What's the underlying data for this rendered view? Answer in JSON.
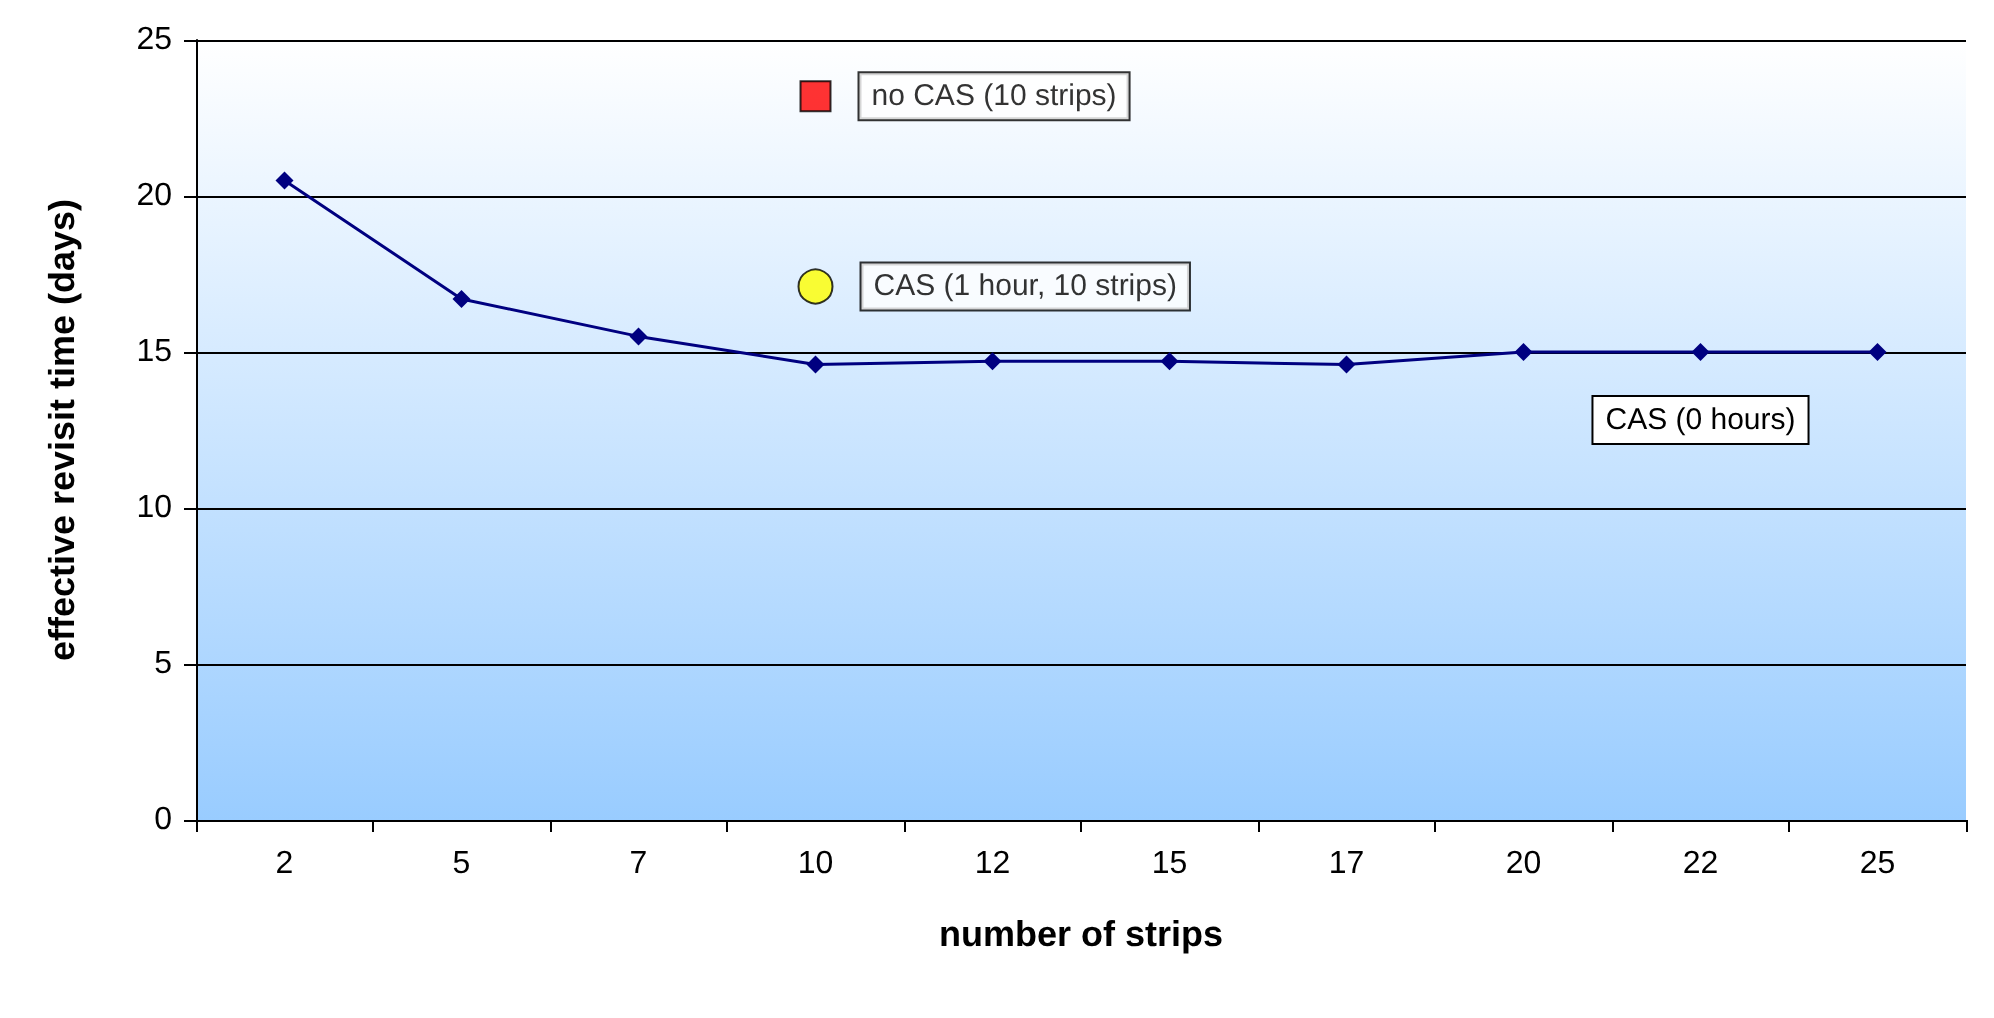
{
  "chart_data": {
    "type": "line",
    "xlabel": "number of strips",
    "ylabel": "effective revisit time (days)",
    "categories": [
      "2",
      "5",
      "7",
      "10",
      "12",
      "15",
      "17",
      "20",
      "22",
      "25"
    ],
    "series": [
      {
        "name": "CAS (0 hours)",
        "color": "#000080",
        "marker": "diamond",
        "values": [
          20.5,
          16.7,
          15.5,
          14.6,
          14.7,
          14.7,
          14.6,
          15.0,
          15.0,
          15.0
        ]
      },
      {
        "name": "no CAS (10 strips)",
        "type": "scatter",
        "color": "#ff0000",
        "marker": "square",
        "x": [
          "10"
        ],
        "values": [
          23.2
        ]
      },
      {
        "name": "CAS (1 hour, 10 strips)",
        "type": "scatter",
        "color": "#ffff00",
        "marker": "circle",
        "x": [
          "10"
        ],
        "values": [
          17.1
        ]
      }
    ],
    "ylim": [
      0,
      25
    ],
    "yticks": [
      0,
      5,
      10,
      15,
      20,
      25
    ],
    "grid": "y",
    "legend": false,
    "line_style": "solid"
  }
}
